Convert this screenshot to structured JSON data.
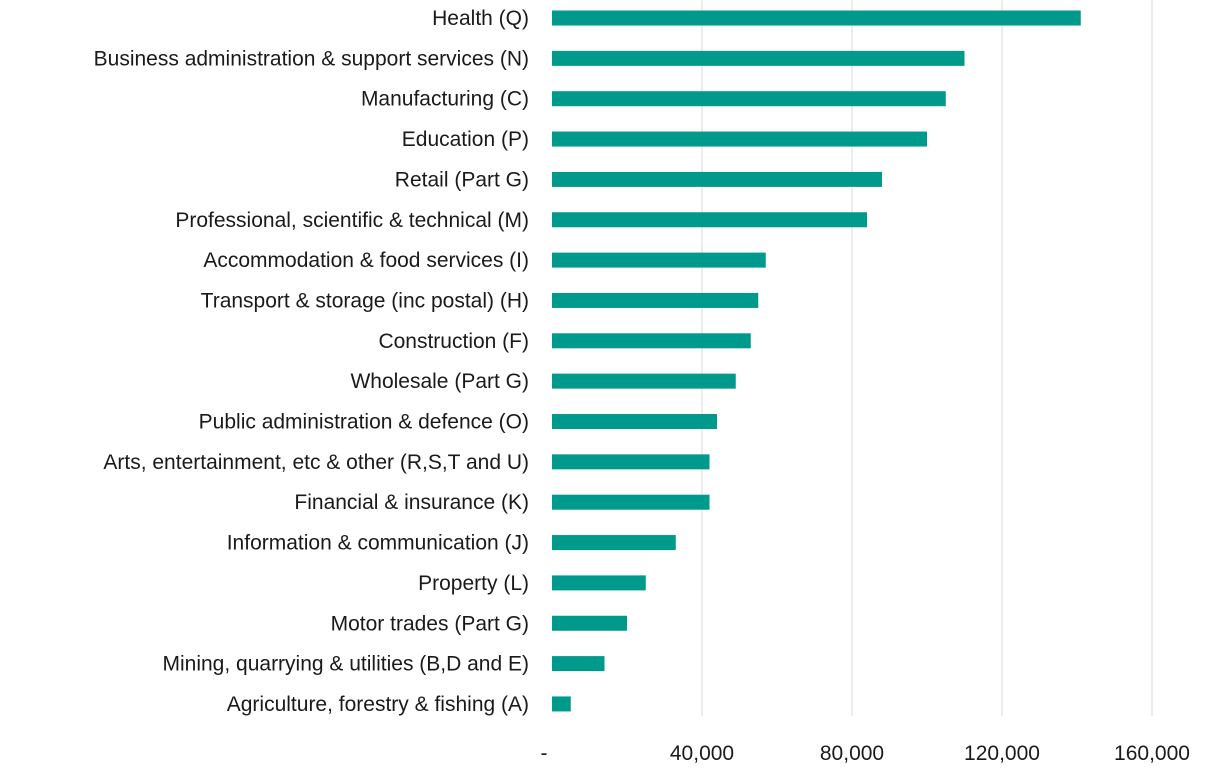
{
  "chart_data": {
    "type": "bar",
    "orientation": "horizontal",
    "categories": [
      "Health (Q)",
      "Business administration & support services (N)",
      "Manufacturing (C)",
      "Education (P)",
      "Retail (Part G)",
      "Professional, scientific & technical (M)",
      "Accommodation & food services (I)",
      "Transport & storage (inc postal) (H)",
      "Construction (F)",
      "Wholesale (Part G)",
      "Public administration & defence (O)",
      "Arts, entertainment, etc & other (R,S,T and U)",
      "Financial & insurance (K)",
      "Information & communication (J)",
      "Property (L)",
      "Motor trades (Part G)",
      "Mining, quarrying & utilities (B,D and E)",
      "Agriculture, forestry & fishing (A)"
    ],
    "values": [
      141000,
      110000,
      105000,
      100000,
      88000,
      84000,
      57000,
      55000,
      53000,
      49000,
      44000,
      42000,
      42000,
      33000,
      25000,
      20000,
      14000,
      5000
    ],
    "xlim": [
      0,
      160000
    ],
    "x_ticks": [
      0,
      40000,
      80000,
      120000,
      160000
    ],
    "x_tick_labels": [
      "-",
      "40,000",
      "80,000",
      "120,000",
      "160,000"
    ],
    "bar_color": "#009a8c",
    "grid_color": "#d9d9d9",
    "grid": true,
    "legend": "none"
  }
}
